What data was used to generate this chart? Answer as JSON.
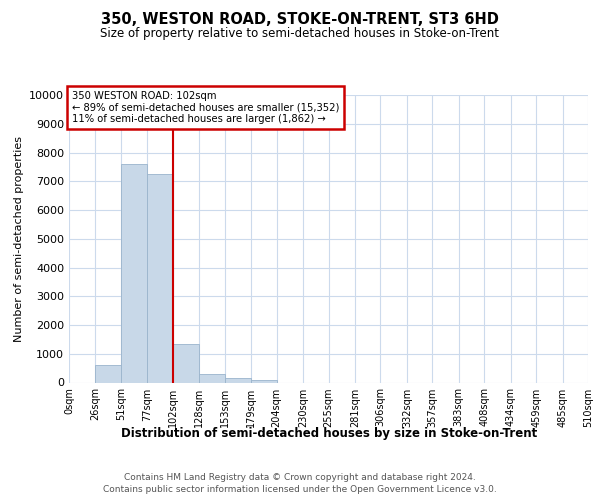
{
  "title": "350, WESTON ROAD, STOKE-ON-TRENT, ST3 6HD",
  "subtitle": "Size of property relative to semi-detached houses in Stoke-on-Trent",
  "xlabel": "Distribution of semi-detached houses by size in Stoke-on-Trent",
  "ylabel": "Number of semi-detached properties",
  "bin_labels": [
    "0sqm",
    "26sqm",
    "51sqm",
    "77sqm",
    "102sqm",
    "128sqm",
    "153sqm",
    "179sqm",
    "204sqm",
    "230sqm",
    "255sqm",
    "281sqm",
    "306sqm",
    "332sqm",
    "357sqm",
    "383sqm",
    "408sqm",
    "434sqm",
    "459sqm",
    "485sqm",
    "510sqm"
  ],
  "bin_edges": [
    0,
    26,
    51,
    77,
    102,
    128,
    153,
    179,
    204,
    230,
    255,
    281,
    306,
    332,
    357,
    383,
    408,
    434,
    459,
    485,
    510
  ],
  "bar_heights": [
    0,
    600,
    7600,
    7250,
    1350,
    300,
    150,
    100,
    0,
    0,
    0,
    0,
    0,
    0,
    0,
    0,
    0,
    0,
    0,
    0
  ],
  "bar_color": "#c8d8e8",
  "bar_edgecolor": "#9ab4cc",
  "vline_x": 102,
  "vline_color": "#cc0000",
  "ann_line1": "350 WESTON ROAD: 102sqm",
  "ann_line2": "← 89% of semi-detached houses are smaller (15,352)",
  "ann_line3": "11% of semi-detached houses are larger (1,862) →",
  "annotation_box_color": "#cc0000",
  "ylim": [
    0,
    10000
  ],
  "yticks": [
    0,
    1000,
    2000,
    3000,
    4000,
    5000,
    6000,
    7000,
    8000,
    9000,
    10000
  ],
  "footer_line1": "Contains HM Land Registry data © Crown copyright and database right 2024.",
  "footer_line2": "Contains public sector information licensed under the Open Government Licence v3.0.",
  "background_color": "#ffffff",
  "grid_color": "#ccdaec"
}
